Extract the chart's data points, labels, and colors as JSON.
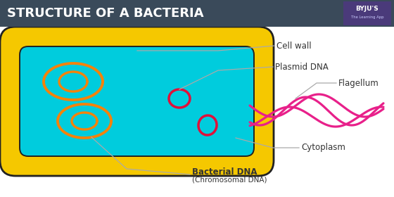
{
  "title": "STRUCTURE OF A BACTERIA",
  "title_bg": "#3a4a5a",
  "title_color": "#ffffff",
  "cell_bg": "#ffffff",
  "cell_wall_color": "#f5c800",
  "cell_wall_border": "#222222",
  "cytoplasm_color": "#00ccdd",
  "dna_color": "#f5820a",
  "plasmid_color": "#e0103a",
  "flagellum_color": "#e8208a",
  "annotation_line_color": "#aaaaaa",
  "annotation_text_color": "#333333",
  "byju_bg": "#4a3a7a",
  "labels": {
    "cell_wall": "Cell wall",
    "plasmid_dna": "Plasmid DNA",
    "flagellum": "Flagellum",
    "cytoplasm": "Cytoplasm",
    "bacterial_dna": "Bacterial DNA",
    "chromosomal_dna": "(Chromosomal DNA)"
  }
}
